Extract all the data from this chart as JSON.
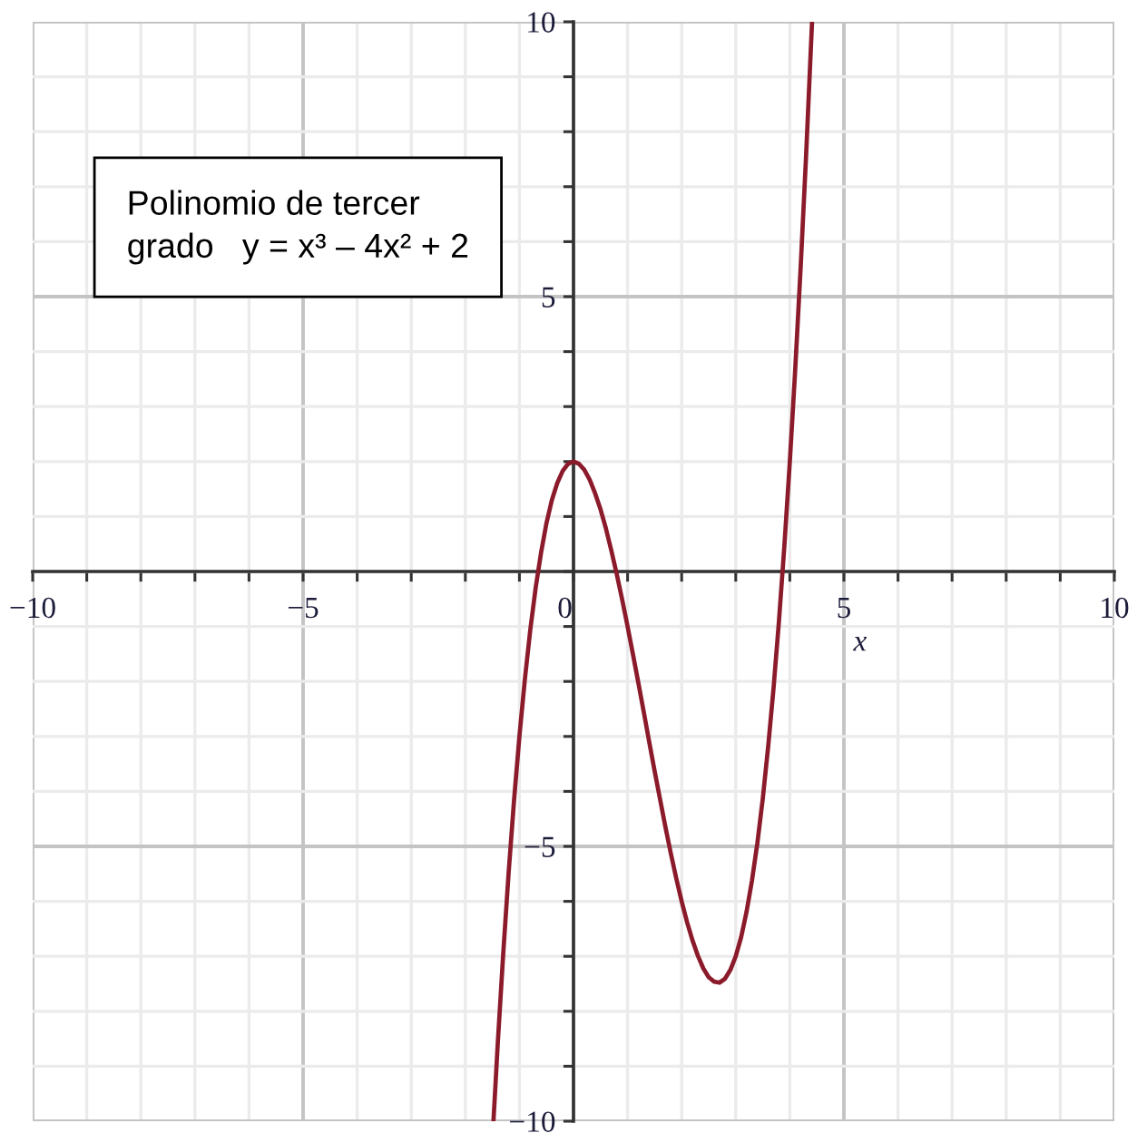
{
  "chart_data": {
    "type": "line",
    "xlabel": "x",
    "annotations": [
      "Polinomio de tercer\ngrado   y = x³ – 4x² + 2"
    ],
    "x": [
      -1.48,
      -1.4,
      -1.3,
      -1.2,
      -1.1,
      -1.0,
      -0.9,
      -0.8,
      -0.7,
      -0.6,
      -0.5,
      -0.4,
      -0.3,
      -0.2,
      -0.1,
      0,
      0.1,
      0.2,
      0.3,
      0.4,
      0.5,
      0.6,
      0.7,
      0.8,
      0.9,
      1.0,
      1.1,
      1.2,
      1.3,
      1.4,
      1.5,
      1.6,
      1.7,
      1.8,
      1.9,
      2.0,
      2.1,
      2.2,
      2.3,
      2.4,
      2.5,
      2.6,
      2.7,
      2.8,
      2.9,
      3.0,
      3.1,
      3.2,
      3.3,
      3.4,
      3.5,
      3.6,
      3.7,
      3.8,
      3.9,
      4.0,
      4.1,
      4.2,
      4.3,
      4.41
    ],
    "values": [
      -10.0,
      -8.58,
      -6.96,
      -5.49,
      -4.17,
      -3.0,
      -1.97,
      -1.07,
      -0.3,
      0.34,
      0.88,
      1.3,
      1.61,
      1.83,
      1.96,
      2.0,
      1.96,
      1.85,
      1.67,
      1.42,
      1.13,
      0.78,
      0.38,
      -0.05,
      -0.51,
      -1.0,
      -1.51,
      -2.03,
      -2.56,
      -3.1,
      -3.63,
      -4.14,
      -4.65,
      -5.13,
      -5.58,
      -6.0,
      -6.38,
      -6.71,
      -6.99,
      -7.22,
      -7.38,
      -7.46,
      -7.48,
      -7.41,
      -7.25,
      -7.0,
      -6.65,
      -6.19,
      -5.62,
      -4.94,
      -4.13,
      -3.18,
      -2.11,
      -0.89,
      0.48,
      2.0,
      3.68,
      5.53,
      7.55,
      9.98
    ],
    "color": "#8b1a2b",
    "xlim": [
      -10,
      10
    ],
    "ylim": [
      -10,
      10
    ],
    "xticks": [
      -10,
      {
        "value": -9,
        "label": null
      },
      {
        "value": -8,
        "label": null
      },
      {
        "value": -7,
        "label": null
      },
      {
        "value": -6,
        "label": null
      },
      -5,
      {
        "value": -4,
        "label": null
      },
      {
        "value": -3,
        "label": null
      },
      {
        "value": -2,
        "label": null
      },
      {
        "value": -1,
        "label": null
      },
      0,
      {
        "value": 1,
        "label": null
      },
      {
        "value": 2,
        "label": null
      },
      {
        "value": 3,
        "label": null
      },
      {
        "value": 4,
        "label": null
      },
      5,
      {
        "value": 6,
        "label": null
      },
      {
        "value": 7,
        "label": null
      },
      {
        "value": 8,
        "label": null
      },
      {
        "value": 9,
        "label": null
      },
      10
    ],
    "yticks": [
      -10,
      {
        "value": -9,
        "label": null
      },
      {
        "value": -8,
        "label": null
      },
      {
        "value": -7,
        "label": null
      },
      {
        "value": -6,
        "label": null
      },
      -5,
      {
        "value": -4,
        "label": null
      },
      {
        "value": -3,
        "label": null
      },
      {
        "value": -2,
        "label": null
      },
      {
        "value": -1,
        "label": null
      },
      {
        "value": 0,
        "label": null
      },
      {
        "value": 1,
        "label": null
      },
      {
        "value": 2,
        "label": null
      },
      {
        "value": 3,
        "label": null
      },
      {
        "value": 4,
        "label": null
      },
      5,
      {
        "value": 6,
        "label": null
      },
      {
        "value": 7,
        "label": null
      },
      {
        "value": 8,
        "label": null
      },
      {
        "value": 9,
        "label": null
      },
      10
    ],
    "grid": true
  }
}
